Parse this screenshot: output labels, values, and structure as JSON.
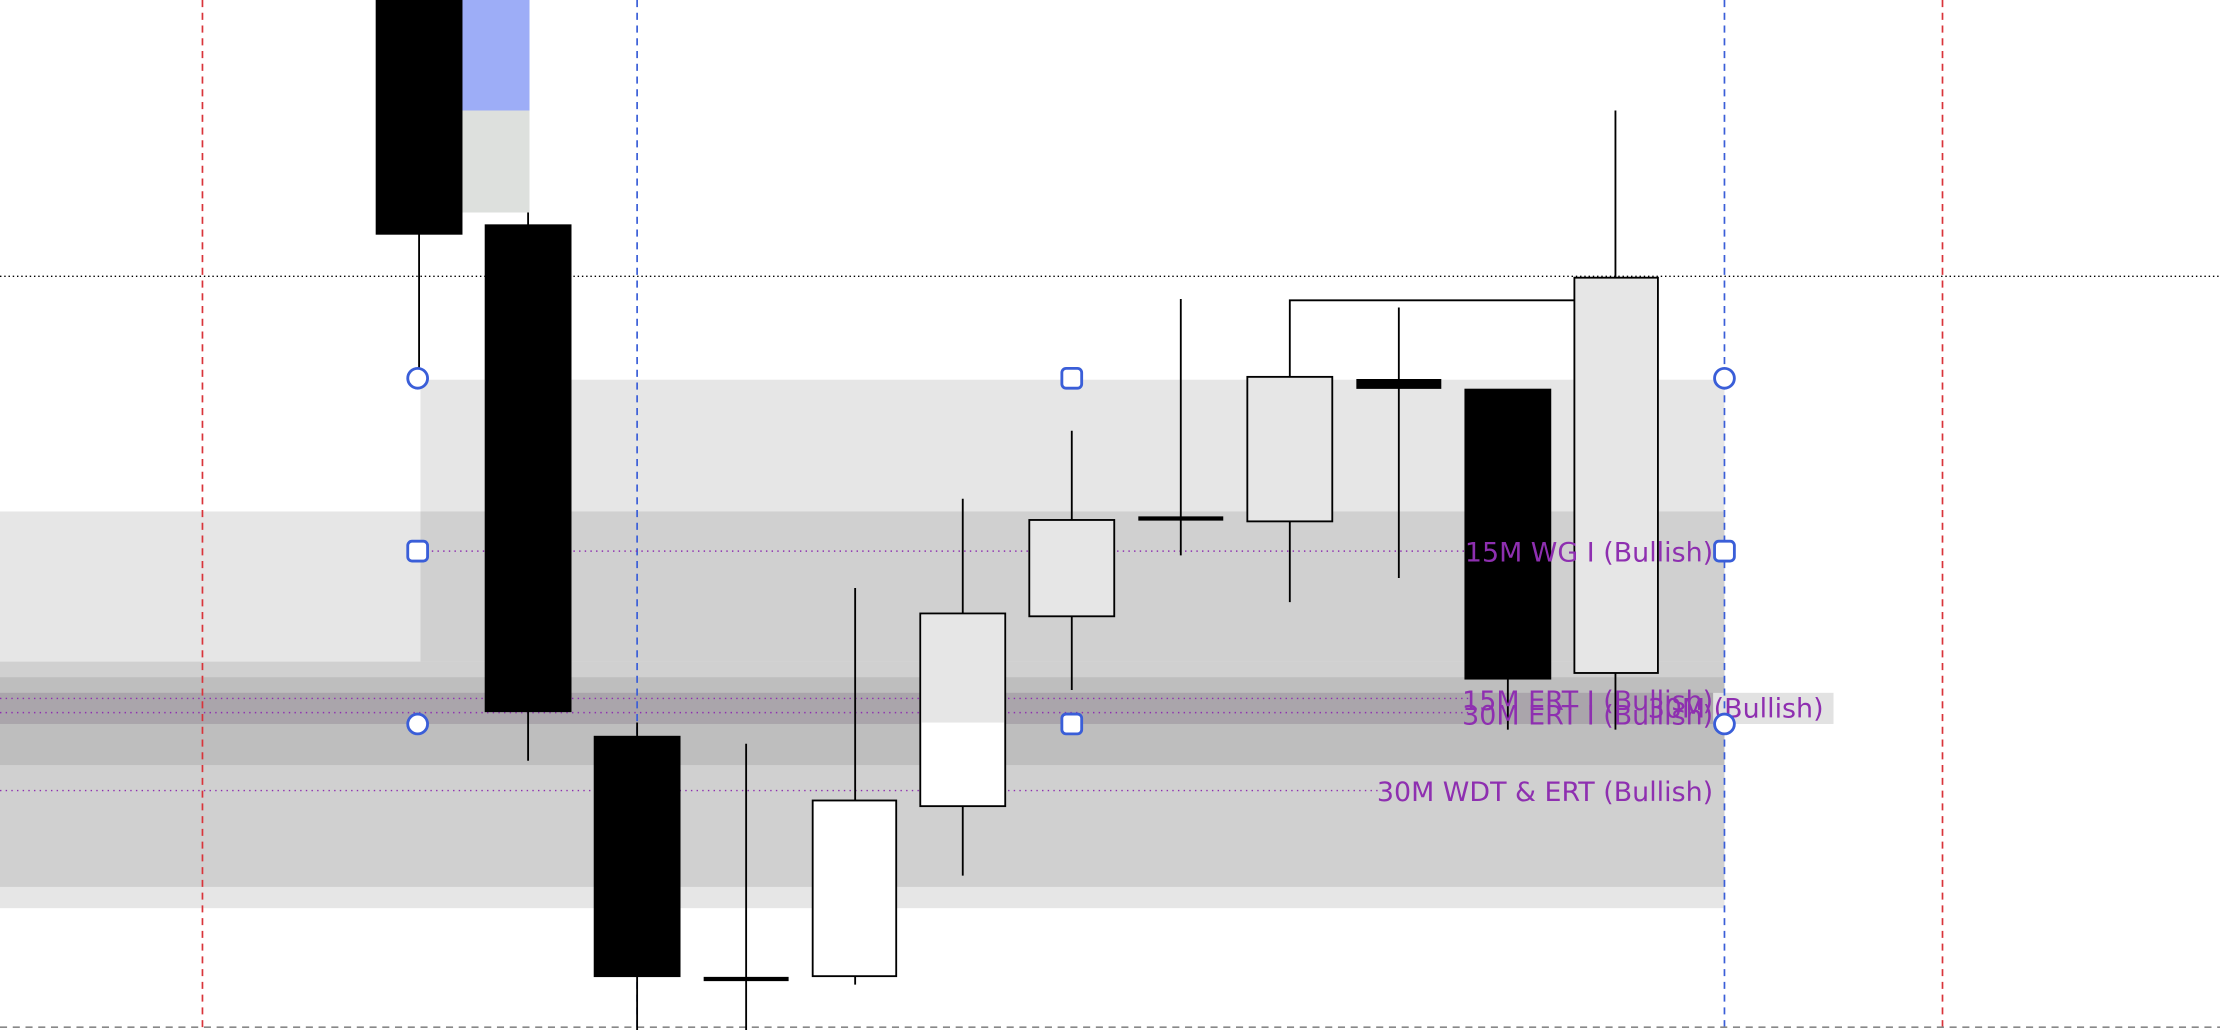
{
  "labels": {
    "wg_15m": "15M WG I (Bullish)",
    "ert_15m": "15M ERT I (Bullish)",
    "ert_30m": "30M ERT I (Bullish)",
    "overlap_30m": "30M (Bullish)",
    "wdt_ert_30m": "30M WDT & ERT (Bullish)"
  }
}
